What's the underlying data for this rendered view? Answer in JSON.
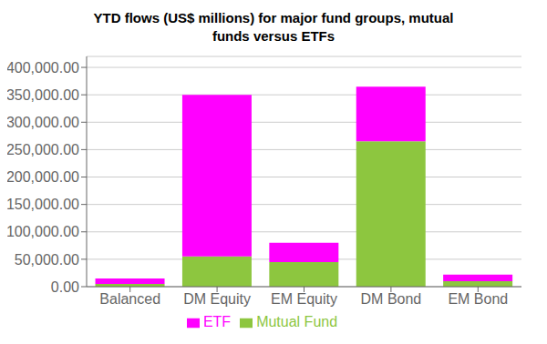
{
  "chart_data": {
    "type": "bar",
    "title": "YTD flows (US$ millions) for major fund groups, mutual\nfunds versus ETFs",
    "categories": [
      "Balanced",
      "DM Equity",
      "EM Equity",
      "DM Bond",
      "EM Bond"
    ],
    "series": [
      {
        "name": "Mutual Fund",
        "color": "#8DC63F",
        "values": [
          5000,
          55000,
          45000,
          265000,
          10000
        ]
      },
      {
        "name": "ETF",
        "color": "#FF00FF",
        "values": [
          10000,
          295000,
          35000,
          100000,
          12000
        ]
      }
    ],
    "stacked": true,
    "ylim": [
      0,
      420000
    ],
    "yticks": [
      {
        "value": 0,
        "label": "0.00"
      },
      {
        "value": 50000,
        "label": "50,000.00"
      },
      {
        "value": 100000,
        "label": "100,000.00"
      },
      {
        "value": 150000,
        "label": "150,000.00"
      },
      {
        "value": 200000,
        "label": "200,000.00"
      },
      {
        "value": 250000,
        "label": "250,000.00"
      },
      {
        "value": 300000,
        "label": "300,000.00"
      },
      {
        "value": 350000,
        "label": "350,000.00"
      },
      {
        "value": 400000,
        "label": "400,000.00"
      }
    ],
    "grid": true,
    "legend": "bottom"
  }
}
